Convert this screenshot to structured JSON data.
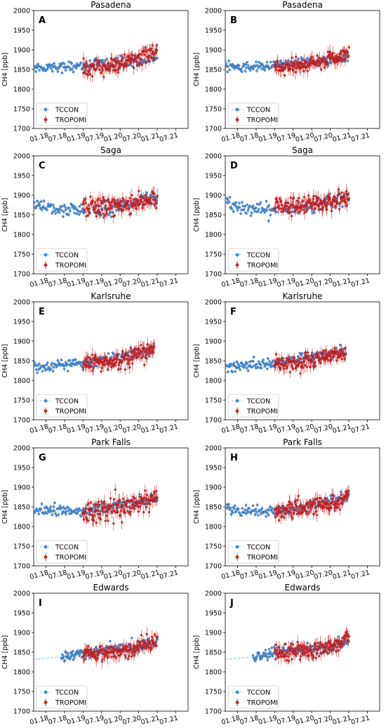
{
  "colors": {
    "tccon": "#4a90d9",
    "tropomi": "#d62728",
    "tropomi_edge": "#7a0f14",
    "tccon_line": "#7fc4e8"
  },
  "x_ticks": [
    "01.18",
    "07.18",
    "01.19",
    "07.19",
    "01.20",
    "07.20",
    "01.21",
    "07.21"
  ],
  "ylabel": "CH4 [ppb]",
  "legend": {
    "tccon": "TCCON",
    "tropomi": "TROPOMI"
  },
  "chart_data": [
    {
      "type": "scatter",
      "letter": "A",
      "title": "Pasadena",
      "ylabel": "CH4 [ppb]",
      "ylim": [
        1700,
        2000
      ],
      "yticks": [
        1700,
        1750,
        1800,
        1850,
        1900,
        1950,
        2000
      ],
      "xlim": [
        "2017-09",
        "2021-11"
      ],
      "legend_position": "lower-left",
      "series": [
        {
          "name": "TCCON",
          "start": "2017-09",
          "end": "2021-01",
          "level": [
            [
              0,
              1855
            ],
            [
              0.3,
              1858
            ],
            [
              0.55,
              1865
            ],
            [
              0.8,
              1870
            ],
            [
              1,
              1880
            ]
          ],
          "spread": 12
        },
        {
          "name": "TROPOMI",
          "start": "2019-01",
          "end": "2021-01",
          "level": [
            [
              0,
              1852
            ],
            [
              0.3,
              1855
            ],
            [
              0.6,
              1870
            ],
            [
              1,
              1895
            ]
          ],
          "spread": 18
        }
      ]
    },
    {
      "type": "scatter",
      "letter": "B",
      "title": "Pasadena",
      "ylabel": "CH4 [ppb]",
      "ylim": [
        1700,
        2000
      ],
      "yticks": [
        1700,
        1750,
        1800,
        1850,
        1900,
        1950,
        2000
      ],
      "xlim": [
        "2017-09",
        "2021-11"
      ],
      "legend_position": "lower-left",
      "series": [
        {
          "name": "TCCON",
          "start": "2017-09",
          "end": "2021-01",
          "level": [
            [
              0,
              1855
            ],
            [
              0.3,
              1858
            ],
            [
              0.55,
              1865
            ],
            [
              0.8,
              1872
            ],
            [
              1,
              1882
            ]
          ],
          "spread": 12
        },
        {
          "name": "TROPOMI",
          "start": "2019-01",
          "end": "2021-01",
          "level": [
            [
              0,
              1853
            ],
            [
              0.3,
              1856
            ],
            [
              0.6,
              1868
            ],
            [
              1,
              1892
            ]
          ],
          "spread": 17
        }
      ]
    },
    {
      "type": "scatter",
      "letter": "C",
      "title": "Saga",
      "ylabel": "CH4 [ppb]",
      "ylim": [
        1700,
        2000
      ],
      "yticks": [
        1700,
        1750,
        1800,
        1850,
        1900,
        1950,
        2000
      ],
      "xlim": [
        "2017-09",
        "2021-11"
      ],
      "legend_position": "lower-left",
      "series": [
        {
          "name": "TCCON",
          "start": "2017-09",
          "end": "2021-01",
          "level": [
            [
              0,
              1880
            ],
            [
              0.2,
              1865
            ],
            [
              0.45,
              1858
            ],
            [
              0.7,
              1872
            ],
            [
              1,
              1890
            ]
          ],
          "spread": 16
        },
        {
          "name": "TROPOMI",
          "start": "2019-01",
          "end": "2021-01",
          "level": [
            [
              0,
              1868
            ],
            [
              0.4,
              1872
            ],
            [
              0.7,
              1880
            ],
            [
              1,
              1895
            ]
          ],
          "spread": 22
        }
      ]
    },
    {
      "type": "scatter",
      "letter": "D",
      "title": "Saga",
      "ylabel": "CH4 [ppb]",
      "ylim": [
        1700,
        2000
      ],
      "yticks": [
        1700,
        1750,
        1800,
        1850,
        1900,
        1950,
        2000
      ],
      "xlim": [
        "2017-09",
        "2021-11"
      ],
      "legend_position": "lower-left",
      "series": [
        {
          "name": "TCCON",
          "start": "2017-09",
          "end": "2021-01",
          "level": [
            [
              0,
              1878
            ],
            [
              0.2,
              1865
            ],
            [
              0.45,
              1858
            ],
            [
              0.7,
              1872
            ],
            [
              1,
              1892
            ]
          ],
          "spread": 16
        },
        {
          "name": "TROPOMI",
          "start": "2019-01",
          "end": "2021-01",
          "level": [
            [
              0,
              1870
            ],
            [
              0.4,
              1875
            ],
            [
              0.7,
              1880
            ],
            [
              1,
              1898
            ]
          ],
          "spread": 22
        }
      ]
    },
    {
      "type": "scatter",
      "letter": "E",
      "title": "Karlsruhe",
      "ylabel": "CH4 [ppb]",
      "ylim": [
        1700,
        2000
      ],
      "yticks": [
        1700,
        1750,
        1800,
        1850,
        1900,
        1950,
        2000
      ],
      "xlim": [
        "2017-09",
        "2021-11"
      ],
      "legend_position": "lower-left",
      "series": [
        {
          "name": "TCCON",
          "start": "2017-09",
          "end": "2020-12",
          "level": [
            [
              0,
              1835
            ],
            [
              0.3,
              1840
            ],
            [
              0.6,
              1855
            ],
            [
              0.85,
              1868
            ],
            [
              1,
              1880
            ]
          ],
          "spread": 12
        },
        {
          "name": "TROPOMI",
          "start": "2019-01",
          "end": "2020-12",
          "level": [
            [
              0,
              1845
            ],
            [
              0.4,
              1842
            ],
            [
              0.7,
              1858
            ],
            [
              1,
              1885
            ]
          ],
          "spread": 20
        }
      ]
    },
    {
      "type": "scatter",
      "letter": "F",
      "title": "Karlsruhe",
      "ylabel": "CH4 [ppb]",
      "ylim": [
        1700,
        2000
      ],
      "yticks": [
        1700,
        1750,
        1800,
        1850,
        1900,
        1950,
        2000
      ],
      "xlim": [
        "2017-09",
        "2021-11"
      ],
      "legend_position": "lower-left",
      "series": [
        {
          "name": "TCCON",
          "start": "2017-09",
          "end": "2020-12",
          "level": [
            [
              0,
              1835
            ],
            [
              0.3,
              1840
            ],
            [
              0.6,
              1855
            ],
            [
              0.85,
              1865
            ],
            [
              1,
              1878
            ]
          ],
          "spread": 12
        },
        {
          "name": "TROPOMI",
          "start": "2019-01",
          "end": "2020-12",
          "level": [
            [
              0,
              1845
            ],
            [
              0.4,
              1844
            ],
            [
              0.7,
              1860
            ],
            [
              1,
              1872
            ]
          ],
          "spread": 18
        }
      ]
    },
    {
      "type": "scatter",
      "letter": "G",
      "title": "Park Falls",
      "ylabel": "CH4 [ppb]",
      "ylim": [
        1700,
        2000
      ],
      "yticks": [
        1700,
        1750,
        1800,
        1850,
        1900,
        1950,
        2000
      ],
      "xlim": [
        "2017-09",
        "2021-11"
      ],
      "legend_position": "lower-left",
      "series": [
        {
          "name": "TCCON",
          "start": "2017-09",
          "end": "2021-01",
          "level": [
            [
              0,
              1845
            ],
            [
              0.3,
              1838
            ],
            [
              0.55,
              1845
            ],
            [
              0.8,
              1860
            ],
            [
              1,
              1875
            ]
          ],
          "spread": 14
        },
        {
          "name": "TROPOMI",
          "start": "2019-01",
          "end": "2021-01",
          "level": [
            [
              0,
              1835
            ],
            [
              0.35,
              1840
            ],
            [
              0.7,
              1855
            ],
            [
              1,
              1878
            ]
          ],
          "spread": 24
        }
      ]
    },
    {
      "type": "scatter",
      "letter": "H",
      "title": "Park Falls",
      "ylabel": "CH4 [ppb]",
      "ylim": [
        1700,
        2000
      ],
      "yticks": [
        1700,
        1750,
        1800,
        1850,
        1900,
        1950,
        2000
      ],
      "xlim": [
        "2017-09",
        "2021-11"
      ],
      "legend_position": "lower-left",
      "series": [
        {
          "name": "TCCON",
          "start": "2017-09",
          "end": "2021-01",
          "level": [
            [
              0,
              1845
            ],
            [
              0.3,
              1838
            ],
            [
              0.55,
              1845
            ],
            [
              0.8,
              1860
            ],
            [
              1,
              1875
            ]
          ],
          "spread": 14
        },
        {
          "name": "TROPOMI",
          "start": "2019-01",
          "end": "2021-01",
          "level": [
            [
              0,
              1838
            ],
            [
              0.35,
              1842
            ],
            [
              0.7,
              1856
            ],
            [
              1,
              1876
            ]
          ],
          "spread": 20
        }
      ]
    },
    {
      "type": "scatter",
      "letter": "I",
      "title": "Edwards",
      "ylabel": "CH4 [ppb]",
      "ylim": [
        1700,
        2000
      ],
      "yticks": [
        1700,
        1750,
        1800,
        1850,
        1900,
        1950,
        2000
      ],
      "xlim": [
        "2017-09",
        "2021-11"
      ],
      "legend_position": "lower-left",
      "series": [
        {
          "name": "TCCON",
          "start": "2018-06",
          "end": "2021-01",
          "level": [
            [
              0,
              1838
            ],
            [
              0.3,
              1852
            ],
            [
              0.55,
              1858
            ],
            [
              0.8,
              1862
            ],
            [
              1,
              1880
            ]
          ],
          "spread": 12
        },
        {
          "name": "TROPOMI",
          "start": "2019-01",
          "end": "2021-01",
          "level": [
            [
              0,
              1848
            ],
            [
              0.4,
              1850
            ],
            [
              0.7,
              1858
            ],
            [
              1,
              1885
            ]
          ],
          "spread": 18
        }
      ]
    },
    {
      "type": "scatter",
      "letter": "J",
      "title": "Edwards",
      "ylabel": "CH4 [ppb]",
      "ylim": [
        1700,
        2000
      ],
      "yticks": [
        1700,
        1750,
        1800,
        1850,
        1900,
        1950,
        2000
      ],
      "xlim": [
        "2017-09",
        "2021-11"
      ],
      "legend_position": "lower-left",
      "series": [
        {
          "name": "TCCON",
          "start": "2018-06",
          "end": "2021-01",
          "level": [
            [
              0,
              1838
            ],
            [
              0.3,
              1852
            ],
            [
              0.55,
              1858
            ],
            [
              0.8,
              1862
            ],
            [
              1,
              1880
            ]
          ],
          "spread": 12
        },
        {
          "name": "TROPOMI",
          "start": "2019-01",
          "end": "2021-01",
          "level": [
            [
              0,
              1850
            ],
            [
              0.4,
              1852
            ],
            [
              0.7,
              1860
            ],
            [
              1,
              1888
            ]
          ],
          "spread": 18
        }
      ]
    }
  ]
}
